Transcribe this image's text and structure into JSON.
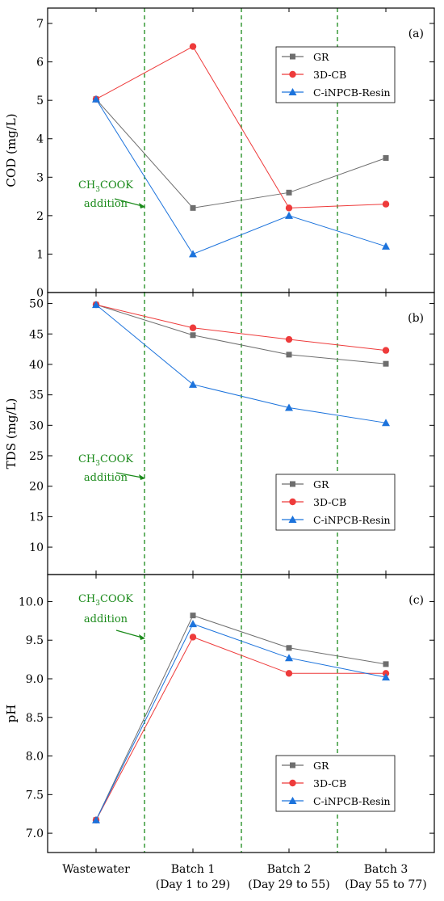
{
  "figure": {
    "x_categories": [
      "Wastewater",
      "Batch 1",
      "Batch 2",
      "Batch 3"
    ],
    "x_sublabels": [
      "",
      "(Day 1 to 29)",
      "(Day 29 to 55)",
      "(Day 55 to 77)"
    ],
    "annotation": {
      "formula_main": "CH",
      "formula_sub": "3",
      "formula_rest": "COOK",
      "line2": "addition"
    },
    "series_styles": [
      {
        "name": "GR",
        "color": "#6e6e6e",
        "marker": "square"
      },
      {
        "name": "3D-CB",
        "color": "#ee3b3b",
        "marker": "circle"
      },
      {
        "name": "C-iNPCB-Resin",
        "color": "#1c73dc",
        "marker": "triangle"
      }
    ],
    "accent_color": "#1a8a1a"
  },
  "chart_data": [
    {
      "type": "line",
      "panel_label": "(a)",
      "ylabel": "COD (mg/L)",
      "ylim": [
        0,
        7.4
      ],
      "yticks": [
        0,
        1,
        2,
        3,
        4,
        5,
        6,
        7
      ],
      "ytick_labels": [
        "0",
        "1",
        "2",
        "3",
        "4",
        "5",
        "6",
        "7"
      ],
      "categories": [
        "Wastewater",
        "Batch 1",
        "Batch 2",
        "Batch 3"
      ],
      "legend_position": "top-right",
      "series": [
        {
          "name": "GR",
          "values": [
            5.03,
            2.2,
            2.6,
            3.5
          ]
        },
        {
          "name": "3D-CB",
          "values": [
            5.03,
            6.4,
            2.2,
            2.3
          ]
        },
        {
          "name": "C-iNPCB-Resin",
          "values": [
            5.03,
            1.0,
            2.0,
            1.2
          ]
        }
      ]
    },
    {
      "type": "line",
      "panel_label": "(b)",
      "ylabel": "TDS (mg/L)",
      "ylim": [
        5.5,
        51.8
      ],
      "yticks": [
        10,
        15,
        20,
        25,
        30,
        35,
        40,
        45,
        50
      ],
      "ytick_labels": [
        "10",
        "15",
        "20",
        "25",
        "30",
        "35",
        "40",
        "45",
        "50"
      ],
      "categories": [
        "Wastewater",
        "Batch 1",
        "Batch 2",
        "Batch 3"
      ],
      "legend_position": "bottom-right",
      "series": [
        {
          "name": "GR",
          "values": [
            49.8,
            44.8,
            41.6,
            40.1
          ]
        },
        {
          "name": "3D-CB",
          "values": [
            49.8,
            46.0,
            44.1,
            42.3
          ]
        },
        {
          "name": "C-iNPCB-Resin",
          "values": [
            49.8,
            36.7,
            32.9,
            30.4
          ]
        }
      ]
    },
    {
      "type": "line",
      "panel_label": "(c)",
      "ylabel": "pH",
      "ylim": [
        6.75,
        10.35
      ],
      "yticks": [
        7.0,
        7.5,
        8.0,
        8.5,
        9.0,
        9.5,
        10.0
      ],
      "ytick_labels": [
        "7.0",
        "7.5",
        "8.0",
        "8.5",
        "9.0",
        "9.5",
        "10.0"
      ],
      "categories": [
        "Wastewater",
        "Batch 1",
        "Batch 2",
        "Batch 3"
      ],
      "legend_position": "bottom-right",
      "series": [
        {
          "name": "GR",
          "values": [
            7.17,
            9.82,
            9.4,
            9.19
          ]
        },
        {
          "name": "3D-CB",
          "values": [
            7.17,
            9.54,
            9.07,
            9.07
          ]
        },
        {
          "name": "C-iNPCB-Resin",
          "values": [
            7.17,
            9.71,
            9.27,
            9.02
          ]
        }
      ]
    }
  ]
}
